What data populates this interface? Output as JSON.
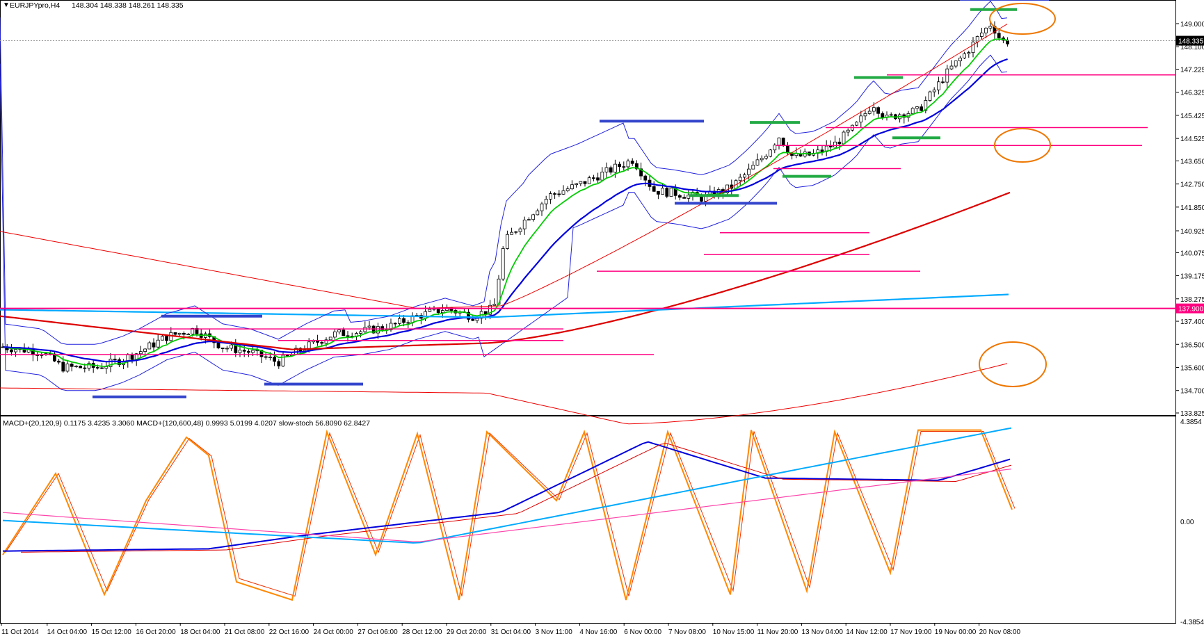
{
  "header": {
    "symbol": "EURJPYpro,H4",
    "ohlc": "148.304 148.338 148.261 148.335"
  },
  "indicator_header": {
    "text": "MACD+(20,120,9) 0.1175 3.4235 3.3060  MACD+(120,600,48) 0.9993 5.0199 4.0207  slow-stoch 56.8090 62.8427"
  },
  "colors": {
    "background": "#ffffff",
    "candle_bull": "#ffffff",
    "candle_bear": "#000000",
    "ma_green": "#00cc00",
    "ma_blue": "#0000dd",
    "ma_red": "#dd0000",
    "ma_cyan": "#00aaff",
    "bollinger": "#2222dd",
    "envelope": "#ee0000",
    "horizontal_levels": "#ff0080",
    "support_marker": "#3344cc",
    "resistance_marker": "#22aa44",
    "highlight_circle": "#ee7700",
    "stoch": "#ff8800",
    "stoch_signal": "#ee3300",
    "macd_magenta": "#ff44aa"
  },
  "chart_data": [
    {
      "type": "candlestick",
      "title": "EURJPYpro,H4",
      "ylabel": "",
      "ylim": [
        133.825,
        150.0
      ],
      "y_ticks": [
        "149.000",
        "148.100",
        "147.225",
        "146.325",
        "145.425",
        "144.525",
        "143.650",
        "142.750",
        "141.850",
        "140.925",
        "140.075",
        "139.175",
        "138.275",
        "137.400",
        "136.500",
        "135.600",
        "134.700",
        "133.825"
      ],
      "x_ticks": [
        "11 Oct 2014",
        "14 Oct 04:00",
        "15 Oct 12:00",
        "16 Oct 20:00",
        "18 Oct 04:00",
        "21 Oct 08:00",
        "22 Oct 16:00",
        "24 Oct 00:00",
        "27 Oct 06:00",
        "28 Oct 12:00",
        "29 Oct 20:00",
        "31 Oct 04:00",
        "3 Nov 11:00",
        "4 Nov 16:00",
        "6 Nov 00:00",
        "7 Nov 08:00",
        "10 Nov 15:00",
        "11 Nov 20:00",
        "13 Nov 04:00",
        "14 Nov 12:00",
        "17 Nov 19:00",
        "19 Nov 00:00",
        "20 Nov 08:00"
      ],
      "price_labels": [
        {
          "value": 148.335,
          "text": "148.335"
        },
        {
          "value": 137.9,
          "text": "137.900"
        }
      ],
      "horizontal_levels": [
        137.9,
        136.1,
        136.65,
        137.1,
        139.35,
        140.0,
        140.85,
        144.25,
        144.95,
        147.0,
        143.35
      ],
      "grid": false,
      "legend": "none"
    },
    {
      "type": "line",
      "title": "MACD+(20,120,9) slow-stoch",
      "ylim": [
        -4.3854,
        4.3854
      ],
      "y_ticks": [
        "4.3854",
        "0.00",
        "-4.3854"
      ],
      "series": [
        {
          "name": "slow-stoch"
        },
        {
          "name": "MACD+(20,120,9)"
        },
        {
          "name": "MACD+(120,600,48)"
        }
      ]
    }
  ]
}
